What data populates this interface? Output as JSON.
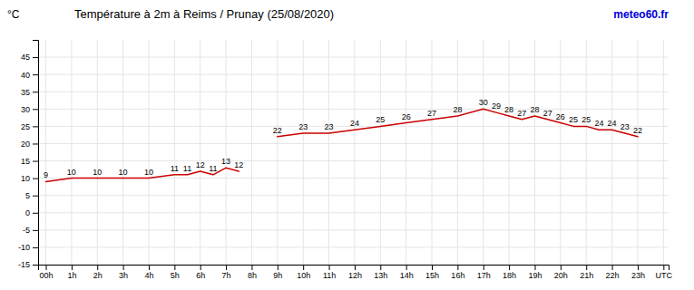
{
  "chart_data": {
    "type": "line",
    "title": "Température à 2m à Reims / Prunay (25/08/2020)",
    "ylabel": "°C",
    "annotations": [
      {
        "text": "meteo60.fr",
        "color": "#0000dd"
      }
    ],
    "series": [
      {
        "color": "#cc0000",
        "x": [
          0,
          1,
          2,
          3,
          4,
          5,
          5.5,
          6,
          6.5,
          7,
          7.5
        ],
        "values": [
          9,
          10,
          10,
          10,
          10,
          11,
          11,
          12,
          11,
          13,
          12
        ]
      },
      {
        "color": "#cc0000",
        "x": [
          9,
          10,
          11,
          12,
          13,
          14,
          15,
          16,
          17,
          17.5,
          18,
          18.5,
          19,
          19.5,
          20,
          20.5,
          21,
          21.5,
          22,
          22.5,
          23
        ],
        "values": [
          22,
          23,
          23,
          24,
          25,
          26,
          27,
          28,
          30,
          29,
          28,
          27,
          28,
          27,
          26,
          25,
          25,
          24,
          24,
          23,
          22
        ]
      }
    ],
    "xlim": [
      -0.3,
      24.2
    ],
    "xticks": [
      {
        "value": 0,
        "label": "00h"
      },
      {
        "value": 1,
        "label": "1h"
      },
      {
        "value": 2,
        "label": "2h"
      },
      {
        "value": 3,
        "label": "3h"
      },
      {
        "value": 4,
        "label": "4h"
      },
      {
        "value": 5,
        "label": "5h"
      },
      {
        "value": 6,
        "label": "6h"
      },
      {
        "value": 7,
        "label": "7h"
      },
      {
        "value": 8,
        "label": "8h"
      },
      {
        "value": 9,
        "label": "9h"
      },
      {
        "value": 10,
        "label": "10h"
      },
      {
        "value": 11,
        "label": "11h"
      },
      {
        "value": 12,
        "label": "12h"
      },
      {
        "value": 13,
        "label": "13h"
      },
      {
        "value": 14,
        "label": "14h"
      },
      {
        "value": 15,
        "label": "15h"
      },
      {
        "value": 16,
        "label": "16h"
      },
      {
        "value": 17,
        "label": "17h"
      },
      {
        "value": 18,
        "label": "18h"
      },
      {
        "value": 19,
        "label": "19h"
      },
      {
        "value": 20,
        "label": "20h"
      },
      {
        "value": 21,
        "label": "21h"
      },
      {
        "value": 22,
        "label": "22h"
      },
      {
        "value": 23,
        "label": "23h"
      },
      {
        "value": 24,
        "label": "UTC"
      }
    ],
    "ylim": [
      -15,
      50
    ],
    "yticks": [
      -15,
      -10,
      -5,
      0,
      5,
      10,
      15,
      20,
      25,
      30,
      35,
      40,
      45
    ],
    "grid": true,
    "data_labels": true
  }
}
